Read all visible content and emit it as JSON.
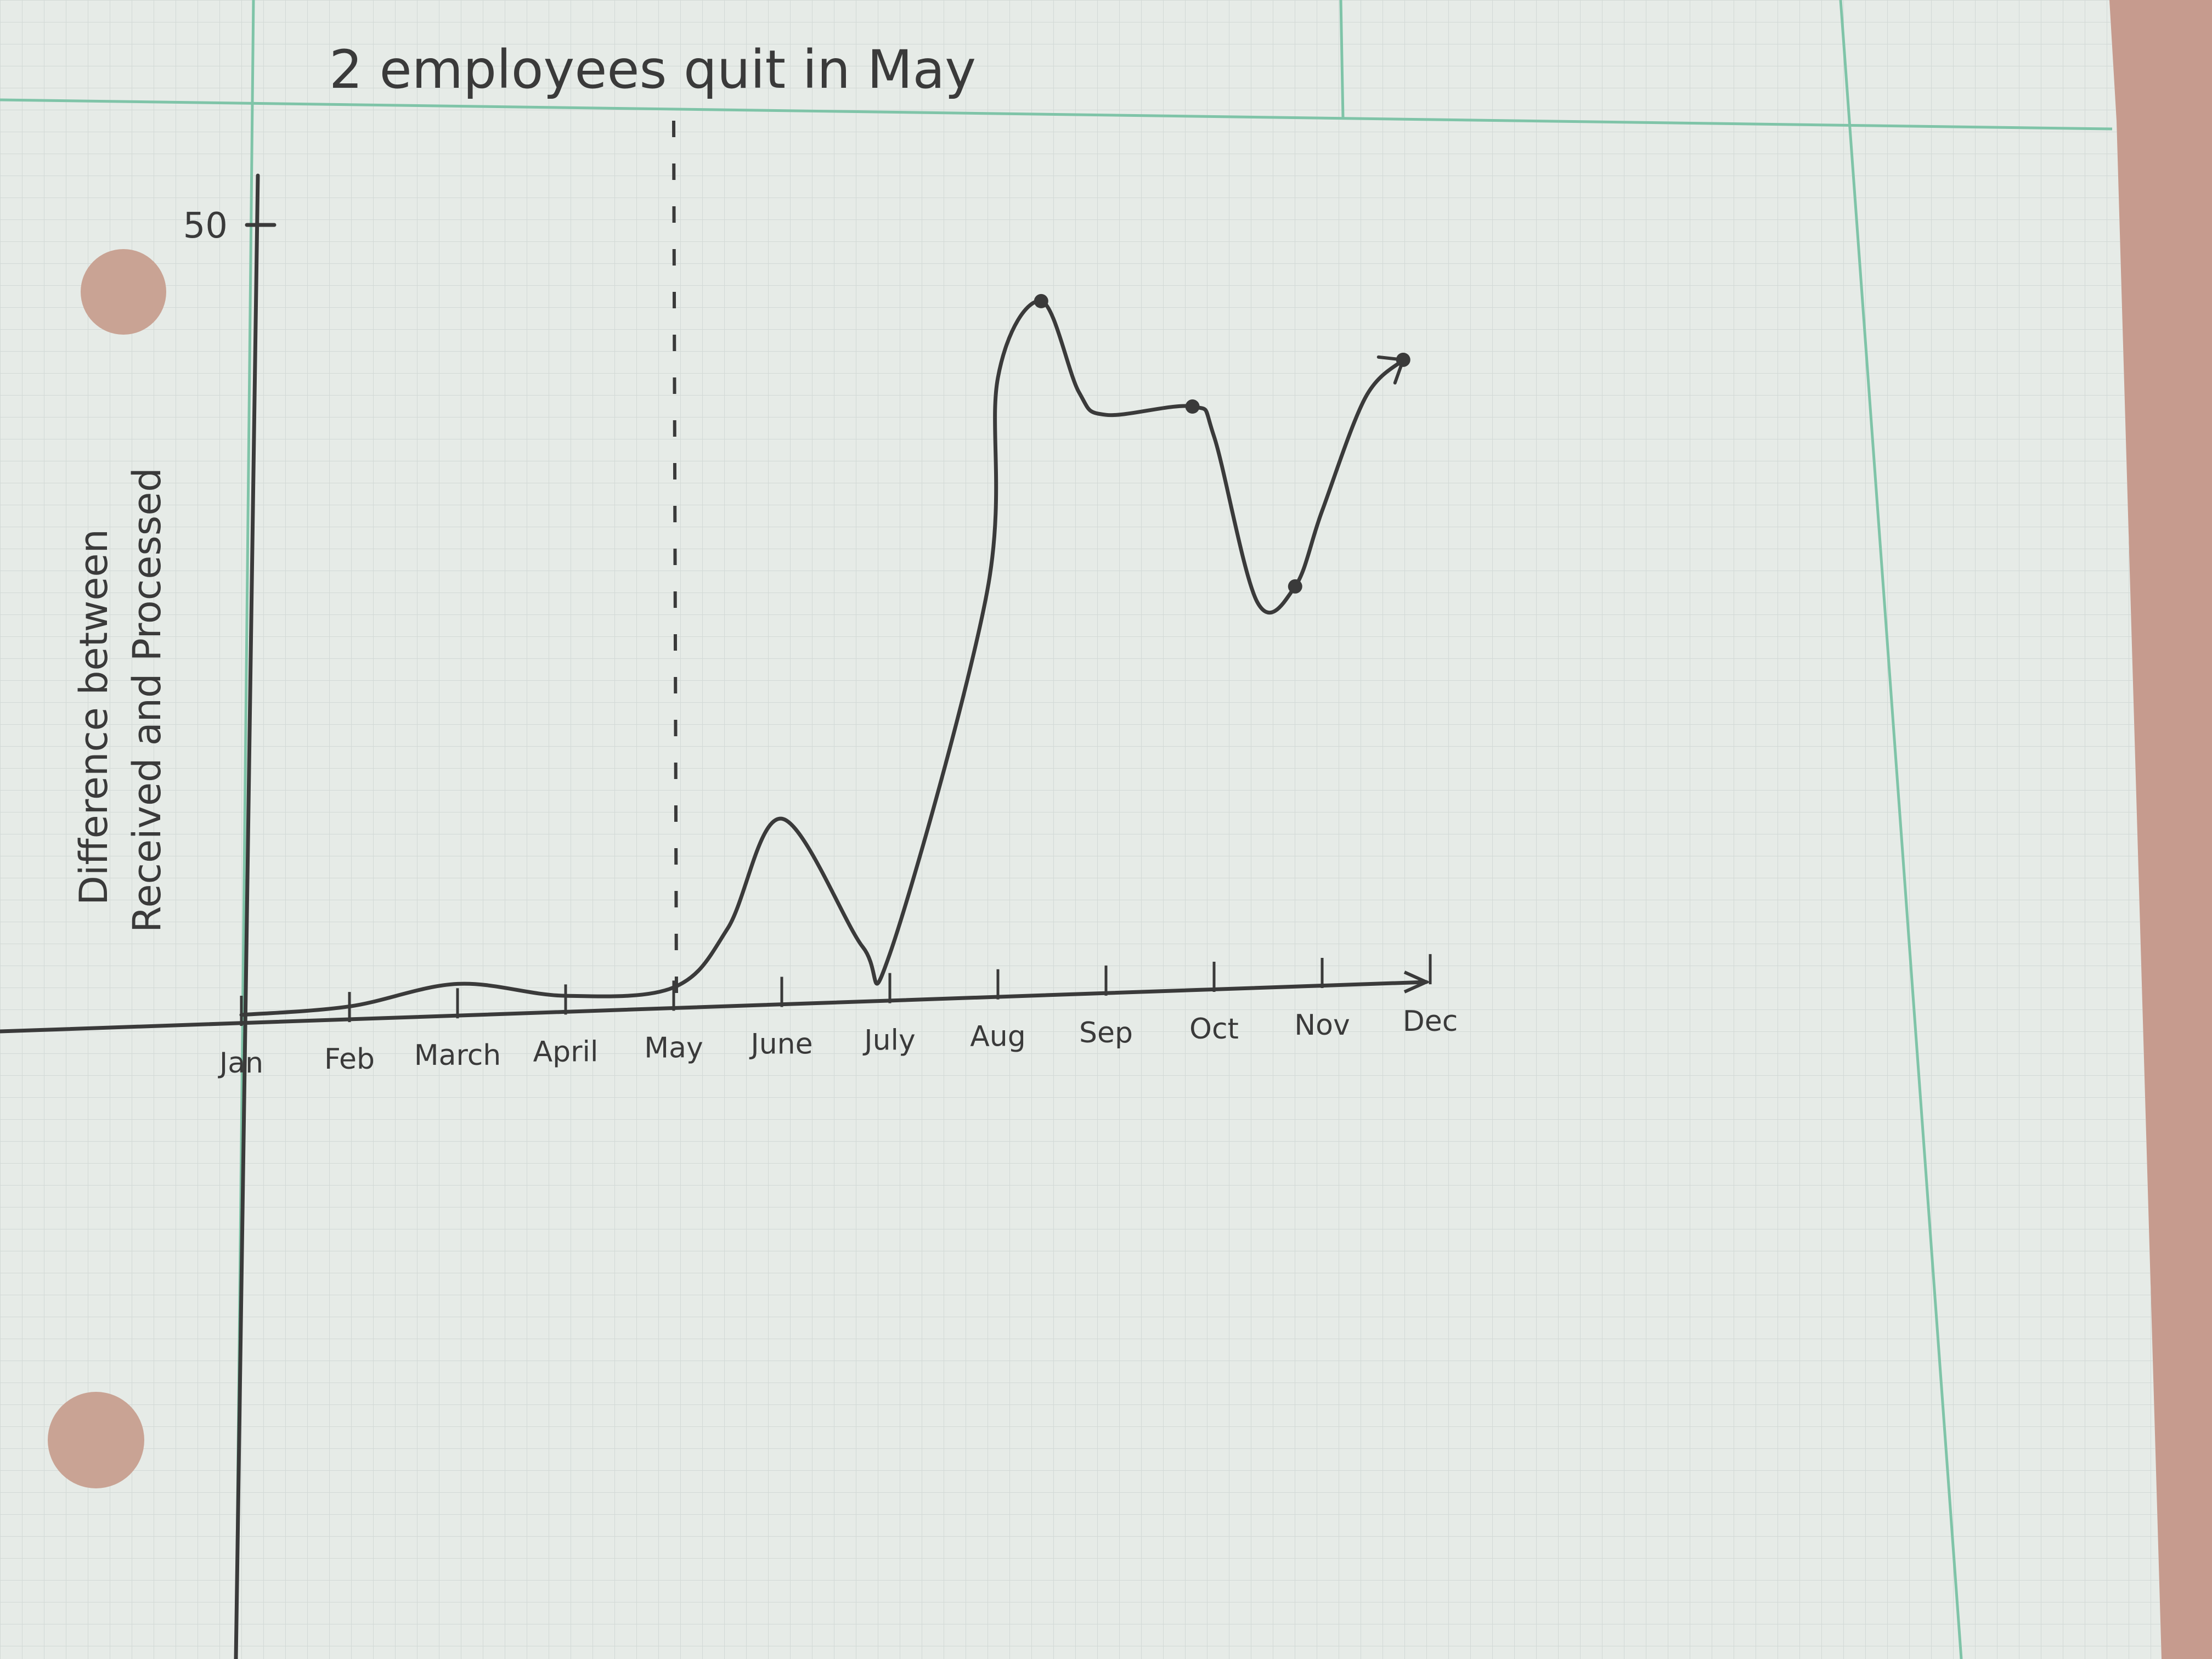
{
  "colors": {
    "background": "#c69b8e",
    "paper": "#e6ebe7",
    "grid_fine": "#d2d9d6",
    "grid_major": "#7fc4a8",
    "pencil": "#3a3a3a",
    "hole": "#c9a394"
  },
  "chart_data": {
    "type": "line",
    "annotation": "2 employees quit in May",
    "ylabel": [
      "Difference between",
      "Received and Processed"
    ],
    "xlabel": "",
    "y_tick_labels": [
      {
        "value": 50,
        "label": "50"
      }
    ],
    "ylim": [
      0,
      50
    ],
    "categories": [
      "Jan",
      "Feb",
      "March",
      "April",
      "May",
      "June",
      "July",
      "Aug",
      "Sep",
      "Oct",
      "Nov",
      "Dec"
    ],
    "x": [
      0,
      1,
      2,
      3,
      4,
      4.5,
      5,
      5.75,
      6,
      6.9,
      7,
      7.4,
      7.75,
      8,
      8.8,
      9,
      9.4,
      9.75,
      10,
      10.4,
      10.75
    ],
    "series": [
      {
        "values": [
          0,
          0.3,
          1.5,
          0.5,
          0.8,
          4.5,
          11.5,
          3,
          2.5,
          26,
          40,
          45,
          39,
          37.5,
          38,
          36,
          25,
          26,
          31,
          38.5,
          41
        ]
      }
    ],
    "marked_points": [
      {
        "x": 7.4,
        "y": 45
      },
      {
        "x": 8.8,
        "y": 38
      },
      {
        "x": 9.75,
        "y": 26
      },
      {
        "x": 10.75,
        "y": 41
      }
    ],
    "vertical_marker": {
      "x": 4,
      "style": "dashed"
    },
    "grid": true,
    "legend": "none"
  }
}
